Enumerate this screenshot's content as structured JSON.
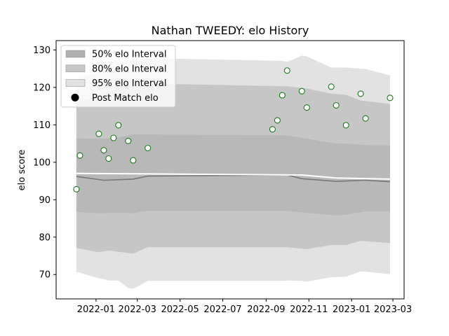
{
  "chart_data": {
    "type": "line",
    "title": "Nathan TWEEDY: elo History",
    "xlabel": "",
    "ylabel": "elo score",
    "xlim": [
      "2021-11-05",
      "2023-03-17"
    ],
    "ylim": [
      63.5,
      132.5
    ],
    "x_ticks": [
      "2022-01",
      "2022-03",
      "2022-05",
      "2022-07",
      "2022-09",
      "2022-11",
      "2023-01",
      "2023-03"
    ],
    "y_ticks": [
      70,
      80,
      90,
      100,
      110,
      120,
      130
    ],
    "grid": false,
    "legend_position": "top-left",
    "legend": [
      {
        "label": "50% elo Interval",
        "kind": "band",
        "color": "#b0b0b0"
      },
      {
        "label": "80% elo Interval",
        "kind": "band",
        "color": "#c6c6c6"
      },
      {
        "label": "95% elo Interval",
        "kind": "band",
        "color": "#e2e2e2"
      },
      {
        "label": "Post Match elo",
        "kind": "marker",
        "color": "#000000"
      }
    ],
    "series": [
      {
        "name": "Post Match elo",
        "kind": "scatter",
        "marker_face": "#ffffff",
        "marker_edge": "#1a7a1a",
        "points": [
          {
            "x": "2021-12-04",
            "y": 92.8
          },
          {
            "x": "2021-12-09",
            "y": 101.8
          },
          {
            "x": "2022-01-05",
            "y": 107.6
          },
          {
            "x": "2022-01-12",
            "y": 103.2
          },
          {
            "x": "2022-01-19",
            "y": 101.0
          },
          {
            "x": "2022-01-26",
            "y": 106.5
          },
          {
            "x": "2022-02-02",
            "y": 109.9
          },
          {
            "x": "2022-02-16",
            "y": 105.7
          },
          {
            "x": "2022-02-23",
            "y": 100.5
          },
          {
            "x": "2022-03-16",
            "y": 103.8
          },
          {
            "x": "2022-09-10",
            "y": 108.8
          },
          {
            "x": "2022-09-17",
            "y": 111.2
          },
          {
            "x": "2022-09-24",
            "y": 117.9
          },
          {
            "x": "2022-10-01",
            "y": 124.5
          },
          {
            "x": "2022-10-22",
            "y": 119.0
          },
          {
            "x": "2022-10-29",
            "y": 114.6
          },
          {
            "x": "2022-12-03",
            "y": 120.2
          },
          {
            "x": "2022-12-10",
            "y": 115.2
          },
          {
            "x": "2022-12-24",
            "y": 109.9
          },
          {
            "x": "2023-01-14",
            "y": 118.3
          },
          {
            "x": "2023-01-21",
            "y": 111.7
          },
          {
            "x": "2023-02-25",
            "y": 117.2
          }
        ]
      },
      {
        "name": "",
        "kind": "mean-line",
        "color": "#777777",
        "points": [
          {
            "x": "2021-12-04",
            "y": 96.2
          },
          {
            "x": "2022-01-12",
            "y": 95.2
          },
          {
            "x": "2022-02-23",
            "y": 95.5
          },
          {
            "x": "2022-03-16",
            "y": 96.3
          },
          {
            "x": "2022-10-01",
            "y": 96.6
          },
          {
            "x": "2022-10-22",
            "y": 95.6
          },
          {
            "x": "2022-12-10",
            "y": 94.9
          },
          {
            "x": "2023-01-21",
            "y": 95.2
          },
          {
            "x": "2023-02-25",
            "y": 94.8
          }
        ]
      },
      {
        "name": "",
        "kind": "line",
        "color": "#ffffff",
        "points": [
          {
            "x": "2021-12-04",
            "y": 97.0
          },
          {
            "x": "2022-03-16",
            "y": 96.9
          },
          {
            "x": "2022-10-22",
            "y": 96.6
          },
          {
            "x": "2022-12-10",
            "y": 95.8
          },
          {
            "x": "2023-02-25",
            "y": 95.5
          }
        ]
      }
    ],
    "bands": [
      {
        "name": "95% elo Interval",
        "color": "#e2e2e2",
        "points": [
          {
            "x": "2021-12-04",
            "low": 70.7,
            "high": 122.4
          },
          {
            "x": "2021-12-09",
            "low": 70.5,
            "high": 122.4
          },
          {
            "x": "2022-01-05",
            "low": 69.0,
            "high": 124.0
          },
          {
            "x": "2022-01-12",
            "low": 68.8,
            "high": 124.5
          },
          {
            "x": "2022-01-19",
            "low": 68.4,
            "high": 125.0
          },
          {
            "x": "2022-02-02",
            "low": 68.4,
            "high": 126.2
          },
          {
            "x": "2022-02-16",
            "low": 66.4,
            "high": 127.2
          },
          {
            "x": "2022-02-23",
            "low": 66.2,
            "high": 127.5
          },
          {
            "x": "2022-03-16",
            "low": 68.3,
            "high": 127.8
          },
          {
            "x": "2022-09-24",
            "low": 68.3,
            "high": 127.1
          },
          {
            "x": "2022-10-01",
            "low": 68.4,
            "high": 126.8
          },
          {
            "x": "2022-10-22",
            "low": 68.3,
            "high": 128.5
          },
          {
            "x": "2022-10-29",
            "low": 68.1,
            "high": 128.3
          },
          {
            "x": "2022-12-03",
            "low": 69.3,
            "high": 125.3
          },
          {
            "x": "2022-12-24",
            "low": 69.4,
            "high": 125.3
          },
          {
            "x": "2023-01-14",
            "low": 70.8,
            "high": 125.0
          },
          {
            "x": "2023-01-21",
            "low": 70.8,
            "high": 124.9
          },
          {
            "x": "2023-02-25",
            "low": 70.1,
            "high": 123.2
          }
        ]
      },
      {
        "name": "80% elo Interval",
        "color": "#c6c6c6",
        "points": [
          {
            "x": "2021-12-04",
            "low": 77.1,
            "high": 115.8
          },
          {
            "x": "2022-01-05",
            "low": 76.0,
            "high": 118.0
          },
          {
            "x": "2022-01-19",
            "low": 76.4,
            "high": 119.0
          },
          {
            "x": "2022-02-23",
            "low": 75.6,
            "high": 120.8
          },
          {
            "x": "2022-03-16",
            "low": 77.3,
            "high": 121.0
          },
          {
            "x": "2022-10-01",
            "low": 77.3,
            "high": 120.3
          },
          {
            "x": "2022-10-29",
            "low": 76.8,
            "high": 119.7
          },
          {
            "x": "2022-12-03",
            "low": 77.9,
            "high": 118.3
          },
          {
            "x": "2022-12-24",
            "low": 77.9,
            "high": 118.0
          },
          {
            "x": "2023-01-14",
            "low": 79.0,
            "high": 116.5
          },
          {
            "x": "2023-02-25",
            "low": 78.4,
            "high": 115.6
          }
        ]
      },
      {
        "name": "50% elo Interval",
        "color": "#b8b8b8",
        "points": [
          {
            "x": "2021-12-04",
            "low": 86.7,
            "high": 106.4
          },
          {
            "x": "2022-01-05",
            "low": 86.4,
            "high": 106.2
          },
          {
            "x": "2022-02-02",
            "low": 86.5,
            "high": 106.7
          },
          {
            "x": "2022-02-23",
            "low": 86.4,
            "high": 107.5
          },
          {
            "x": "2022-03-16",
            "low": 87.0,
            "high": 107.4
          },
          {
            "x": "2022-10-01",
            "low": 87.0,
            "high": 107.2
          },
          {
            "x": "2022-10-22",
            "low": 86.6,
            "high": 106.5
          },
          {
            "x": "2022-12-10",
            "low": 85.8,
            "high": 105.0
          },
          {
            "x": "2022-12-24",
            "low": 86.0,
            "high": 105.0
          },
          {
            "x": "2023-01-21",
            "low": 86.9,
            "high": 104.6
          },
          {
            "x": "2023-02-25",
            "low": 86.9,
            "high": 104.5
          }
        ]
      }
    ]
  }
}
